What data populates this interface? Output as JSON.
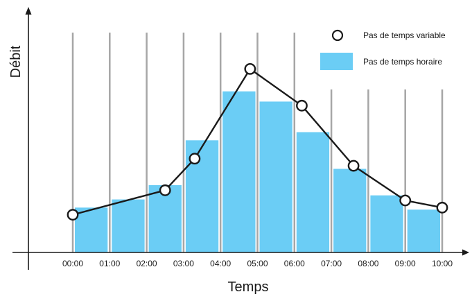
{
  "chart_data": {
    "type": "bar",
    "xlabel": "Temps",
    "ylabel": "Débit",
    "categories": [
      "00:00",
      "01:00",
      "02:00",
      "03:00",
      "04:00",
      "05:00",
      "06:00",
      "07:00",
      "08:00",
      "09:00",
      "10:00"
    ],
    "ylim": [
      0,
      100
    ],
    "grid": "vertical",
    "legend": {
      "position": "top-right",
      "entries": [
        {
          "label": "Pas de temps variable",
          "type": "line-markers"
        },
        {
          "label": "Pas de temps horaire",
          "type": "bar"
        }
      ]
    },
    "series": [
      {
        "name": "Pas de temps horaire",
        "type": "bar",
        "color": "#6bcdf5",
        "x": [
          0.5,
          1.5,
          2.5,
          3.5,
          4.5,
          5.5,
          6.5,
          7.5,
          8.5,
          9.5
        ],
        "values": [
          22,
          26,
          33,
          55,
          79,
          74,
          59,
          41,
          28,
          21
        ]
      },
      {
        "name": "Pas de temps variable",
        "type": "line",
        "color": "#1a1a1a",
        "x": [
          0.0,
          2.5,
          3.3,
          4.8,
          6.2,
          7.6,
          9.0,
          10.0
        ],
        "values": [
          18.5,
          30.5,
          46,
          90,
          72,
          42.5,
          25.5,
          22
        ]
      }
    ]
  }
}
